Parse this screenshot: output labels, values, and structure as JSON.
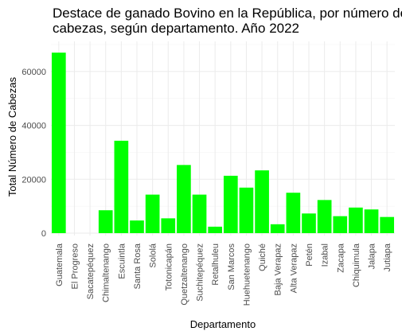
{
  "chart_data": {
    "type": "bar",
    "title_line1": "Destace de ganado Bovino en la República, por número de",
    "title_line2": "cabezas, según departamento. Año 2022",
    "xlabel": "Departamento",
    "ylabel": "Total Número de Cabezas",
    "ylim": [
      0,
      70000
    ],
    "yticks": [
      0,
      20000,
      40000,
      60000
    ],
    "ytick_labels": [
      "0",
      "20000",
      "40000",
      "60000"
    ],
    "grid": true,
    "bar_color": "#00ff00",
    "categories": [
      "Guatemala",
      "El Progreso",
      "Sacatepéquez",
      "Chimaltenango",
      "Escuintla",
      "Santa Rosa",
      "Sololá",
      "Totonicapán",
      "Quetzaltenango",
      "Suchitepéquez",
      "Retalhuleu",
      "San Marcos",
      "Huehuetenango",
      "Quiché",
      "Baja Verapaz",
      "Alta Verapaz",
      "Petén",
      "Izabal",
      "Zacapa",
      "Chiquimula",
      "Jalapa",
      "Jutiapa"
    ],
    "values": [
      67000,
      0,
      0,
      8500,
      34300,
      4700,
      14300,
      5500,
      25300,
      14300,
      2400,
      21300,
      16900,
      23300,
      3300,
      15000,
      7300,
      12300,
      6300,
      9500,
      8800,
      6000
    ]
  }
}
